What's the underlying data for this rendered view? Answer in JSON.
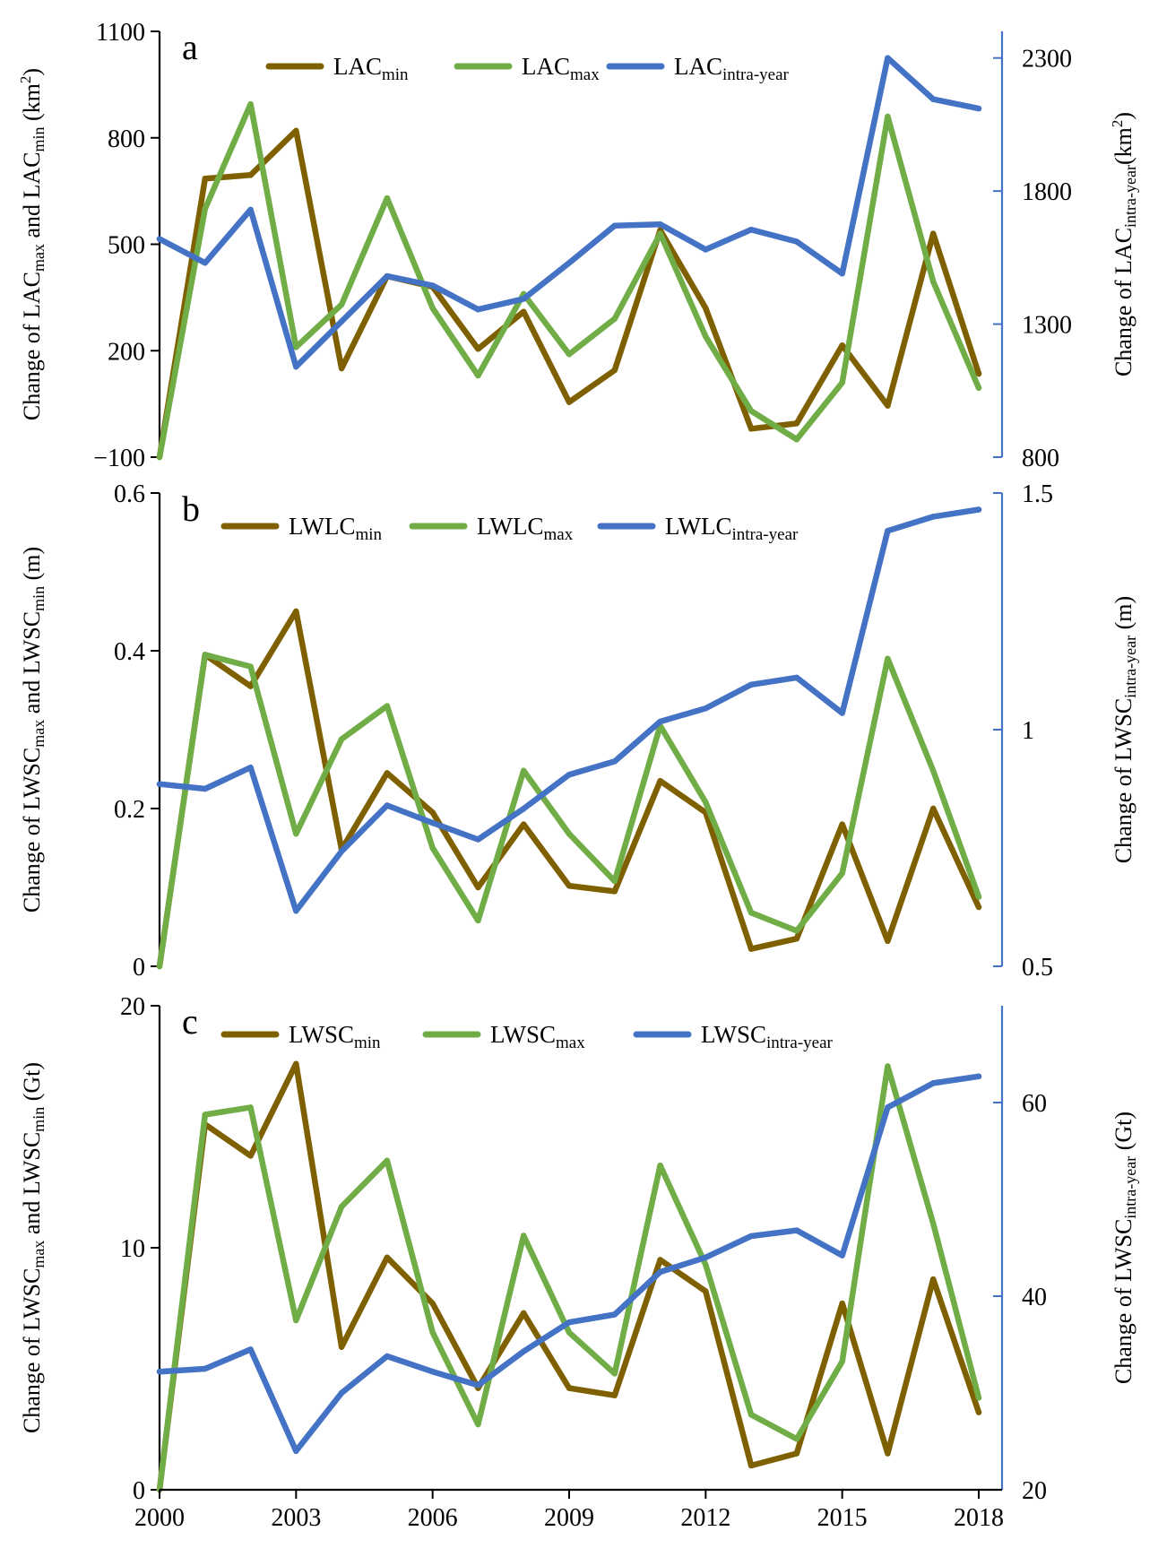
{
  "figure": {
    "x_ticks": [
      "2000",
      "2003",
      "2006",
      "2009",
      "2012",
      "2015",
      "2018"
    ]
  },
  "chart_data": [
    {
      "type": "line",
      "panel": "a",
      "x": [
        2000,
        2001,
        2002,
        2003,
        2004,
        2005,
        2006,
        2007,
        2008,
        2009,
        2010,
        2011,
        2012,
        2013,
        2014,
        2015,
        2016,
        2017,
        2018
      ],
      "ylabel_left": {
        "main": "Change of LAC",
        "sub1": "max",
        "mid": " and LAC",
        "sub2": "min",
        "unit": " (km",
        "sup": "2",
        "end": ")"
      },
      "ylabel_right": {
        "main": "Change of LAC",
        "sub": "intra-year",
        "unit": "(km",
        "sup": "2",
        "end": ")"
      },
      "left_axis": {
        "ylim": [
          -100,
          1100
        ],
        "ticks": [
          -100,
          200,
          500,
          800,
          1100
        ],
        "tick_labels": [
          "−100",
          "200",
          "500",
          "800",
          "1100"
        ]
      },
      "right_axis": {
        "ylim": [
          800,
          2400
        ],
        "ticks": [
          800,
          1300,
          1800,
          2300
        ],
        "tick_labels": [
          "800",
          "1300",
          "1800",
          "2300"
        ]
      },
      "series": [
        {
          "key": "min",
          "name": "LAC",
          "sub": "min",
          "color": "#7f6000",
          "axis": "left",
          "values": [
            -100,
            685,
            695,
            820,
            150,
            410,
            380,
            205,
            310,
            55,
            145,
            540,
            320,
            -20,
            -5,
            215,
            45,
            530,
            135
          ]
        },
        {
          "key": "max",
          "name": "LAC",
          "sub": "max",
          "color": "#70ad47",
          "axis": "left",
          "values": [
            -100,
            600,
            895,
            210,
            330,
            630,
            320,
            130,
            360,
            190,
            290,
            530,
            240,
            30,
            -50,
            110,
            860,
            395,
            95
          ]
        },
        {
          "key": "intra",
          "name": "LAC",
          "sub": "intra-year",
          "color": "#4472c4",
          "axis": "right",
          "values": [
            1620,
            1530,
            1730,
            1140,
            1310,
            1480,
            1445,
            1355,
            1395,
            1530,
            1670,
            1675,
            1580,
            1655,
            1610,
            1490,
            2300,
            2145,
            2110
          ]
        }
      ]
    },
    {
      "type": "line",
      "panel": "b",
      "x": [
        2000,
        2001,
        2002,
        2003,
        2004,
        2005,
        2006,
        2007,
        2008,
        2009,
        2010,
        2011,
        2012,
        2013,
        2014,
        2015,
        2016,
        2017,
        2018
      ],
      "ylabel_left": {
        "main": "Change of LWSC",
        "sub1": "max",
        "mid": " and LWSC",
        "sub2": "min",
        "unit": " (m)",
        "sup": "",
        "end": ""
      },
      "ylabel_right": {
        "main": "Change of LWSC",
        "sub": "intra-year",
        "unit": " (m)",
        "sup": "",
        "end": ""
      },
      "left_axis": {
        "ylim": [
          0,
          0.6
        ],
        "ticks": [
          0,
          0.2,
          0.4,
          0.6
        ],
        "tick_labels": [
          "0",
          "0.2",
          "0.4",
          "0.6"
        ]
      },
      "right_axis": {
        "ylim": [
          0.5,
          1.5
        ],
        "ticks": [
          0.5,
          1,
          1.5
        ],
        "tick_labels": [
          "0.5",
          "1",
          "1.5"
        ]
      },
      "series": [
        {
          "key": "min",
          "name": "LWLC",
          "sub": "min",
          "color": "#7f6000",
          "axis": "left",
          "values": [
            0,
            0.395,
            0.355,
            0.45,
            0.148,
            0.245,
            0.195,
            0.1,
            0.18,
            0.102,
            0.095,
            0.235,
            0.195,
            0.022,
            0.035,
            0.18,
            0.032,
            0.2,
            0.075
          ]
        },
        {
          "key": "max",
          "name": "LWLC",
          "sub": "max",
          "color": "#70ad47",
          "axis": "left",
          "values": [
            0,
            0.395,
            0.38,
            0.168,
            0.288,
            0.33,
            0.15,
            0.058,
            0.248,
            0.168,
            0.108,
            0.305,
            0.208,
            0.068,
            0.045,
            0.118,
            0.39,
            0.248,
            0.088
          ]
        },
        {
          "key": "intra",
          "name": "LWLC",
          "sub": "intra-year",
          "color": "#4472c4",
          "axis": "right",
          "values": [
            0.885,
            0.875,
            0.92,
            0.617,
            0.743,
            0.84,
            0.803,
            0.768,
            0.833,
            0.905,
            0.933,
            1.017,
            1.045,
            1.095,
            1.11,
            1.035,
            1.42,
            1.45,
            1.465
          ]
        }
      ]
    },
    {
      "type": "line",
      "panel": "c",
      "x": [
        2000,
        2001,
        2002,
        2003,
        2004,
        2005,
        2006,
        2007,
        2008,
        2009,
        2010,
        2011,
        2012,
        2013,
        2014,
        2015,
        2016,
        2017,
        2018
      ],
      "x_tick_labels": [
        "2000",
        "2003",
        "2006",
        "2009",
        "2012",
        "2015",
        "2018"
      ],
      "ylabel_left": {
        "main": "Change of LWSC",
        "sub1": "max",
        "mid": " and LWSC",
        "sub2": "min",
        "unit": " (Gt)",
        "sup": "",
        "end": ""
      },
      "ylabel_right": {
        "main": "Change of LWSC",
        "sub": "intra-year",
        "unit": "  (Gt)",
        "sup": "",
        "end": ""
      },
      "left_axis": {
        "ylim": [
          0,
          20
        ],
        "ticks": [
          0,
          10,
          20
        ],
        "tick_labels": [
          "0",
          "10",
          "20"
        ]
      },
      "right_axis": {
        "ylim": [
          20,
          70
        ],
        "ticks": [
          20,
          40,
          60
        ],
        "tick_labels": [
          "20",
          "40",
          "60"
        ]
      },
      "series": [
        {
          "key": "min",
          "name": "LWSC",
          "sub": "min",
          "color": "#7f6000",
          "axis": "left",
          "values": [
            0,
            15.1,
            13.8,
            17.6,
            5.9,
            9.6,
            7.7,
            4.2,
            7.3,
            4.2,
            3.9,
            9.5,
            8.2,
            1.0,
            1.5,
            7.7,
            1.5,
            8.7,
            3.2
          ]
        },
        {
          "key": "max",
          "name": "LWSC",
          "sub": "max",
          "color": "#70ad47",
          "axis": "left",
          "values": [
            0,
            15.5,
            15.8,
            7.0,
            11.7,
            13.6,
            6.5,
            2.7,
            10.5,
            6.5,
            4.8,
            13.4,
            9.3,
            3.1,
            2.1,
            5.3,
            17.5,
            11.0,
            3.8
          ]
        },
        {
          "key": "intra",
          "name": "LWSC",
          "sub": "intra-year",
          "color": "#4472c4",
          "axis": "right",
          "values": [
            32.2,
            32.5,
            34.5,
            24.0,
            30.0,
            33.8,
            32.2,
            30.8,
            34.3,
            37.3,
            38.1,
            42.5,
            44.0,
            46.2,
            46.8,
            44.2,
            59.5,
            62.0,
            62.7
          ]
        }
      ]
    }
  ]
}
